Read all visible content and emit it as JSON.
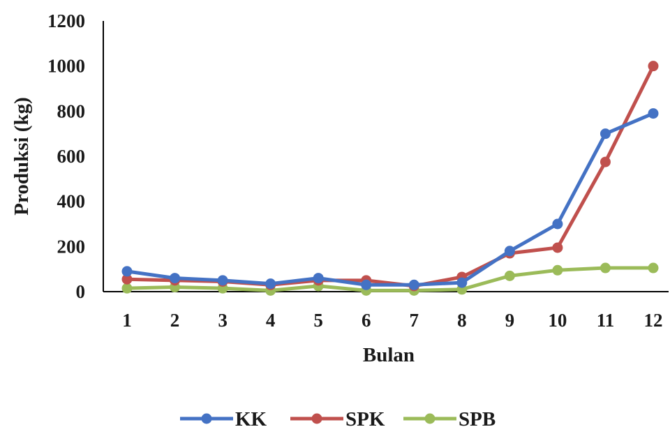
{
  "chart_data": {
    "type": "line",
    "xlabel": "Bulan",
    "ylabel": "Produksi (kg)",
    "categories": [
      "1",
      "2",
      "3",
      "4",
      "5",
      "6",
      "7",
      "8",
      "9",
      "10",
      "11",
      "12"
    ],
    "ylim": [
      0,
      1200
    ],
    "yticks": [
      "0",
      "200",
      "400",
      "600",
      "800",
      "1000",
      "1200"
    ],
    "grid": false,
    "legend_position": "bottom",
    "series": [
      {
        "name": "KK",
        "color": "#4472c4",
        "values": [
          90,
          60,
          50,
          35,
          60,
          30,
          30,
          40,
          180,
          300,
          700,
          790
        ]
      },
      {
        "name": "SPK",
        "color": "#c0504d",
        "values": [
          55,
          50,
          45,
          30,
          50,
          50,
          25,
          65,
          170,
          195,
          575,
          1000
        ]
      },
      {
        "name": "SPB",
        "color": "#9bbb59",
        "values": [
          15,
          20,
          15,
          5,
          25,
          5,
          5,
          10,
          70,
          95,
          105,
          105
        ]
      }
    ]
  }
}
